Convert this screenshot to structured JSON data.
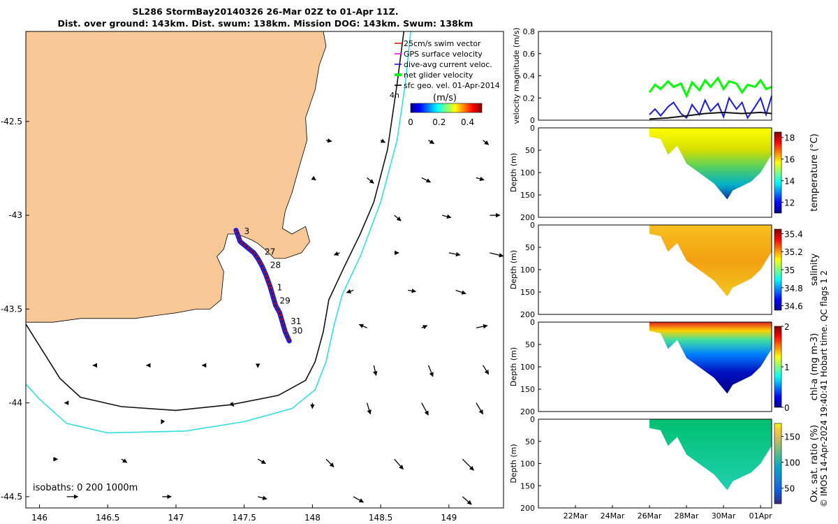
{
  "figure": {
    "title_line1": "SL286 StormBay20140326 26-Mar 02Z to 01-Apr 11Z.",
    "title_line2": "Dist. over ground: 143km. Dist. swum: 138km. Mission DOG: 143km. Swum: 138km",
    "credit": "© IMOS 14-Apr-2024 19:40:41 Hobart time. QC flags 1  2"
  },
  "colors": {
    "land": "#f9c897",
    "track": "#ee1111",
    "dive_avg": "#1a1ae6",
    "net_glider": "#00ff00",
    "isobath_200": "#111111",
    "isobath_1000": "#30e0e0"
  },
  "chart_data": [
    {
      "type": "map",
      "id": "map",
      "x_ticks": [
        "146",
        "146.5",
        "147",
        "147.5",
        "148",
        "148.5",
        "149"
      ],
      "x_tick_values": [
        146,
        146.5,
        147,
        147.5,
        148,
        148.5,
        149
      ],
      "y_ticks": [
        "-42.5",
        "-43",
        "-43.5",
        "-44",
        "-44.5"
      ],
      "y_tick_values": [
        -42.5,
        -43,
        -43.5,
        -44,
        -44.5
      ],
      "xlim": [
        145.9,
        149.4
      ],
      "ylim": [
        -44.56,
        -42.02
      ],
      "legend": {
        "position": "top-right",
        "items": [
          {
            "label": "25cm/s swim vector",
            "color": "#ee1111"
          },
          {
            "label": "GPS surface velocity",
            "color": "#ff00ff"
          },
          {
            "label": "dive-avg current veloc.",
            "color": "#1a1ae6"
          },
          {
            "label": "net glider velocity",
            "color": "#00ff00"
          },
          {
            "label": "sfc geo. vel. 01-Apr-2014",
            "color": "#000000"
          }
        ],
        "time_label": "4h",
        "colorbar_unit": "(m/s)",
        "colorbar_ticks": [
          "0",
          "0.2",
          "0.4"
        ],
        "colorbar_tick_values": [
          0,
          0.2,
          0.4
        ],
        "colorbar_range": [
          0,
          0.5
        ]
      },
      "isobaths_label": "isobaths: 0   200  1000m",
      "track": [
        [
          147.44,
          -43.08
        ],
        [
          147.47,
          -43.14
        ],
        [
          147.52,
          -43.17
        ],
        [
          147.57,
          -43.2
        ],
        [
          147.6,
          -43.23
        ],
        [
          147.63,
          -43.27
        ],
        [
          147.66,
          -43.32
        ],
        [
          147.69,
          -43.38
        ],
        [
          147.71,
          -43.43
        ],
        [
          147.73,
          -43.48
        ],
        [
          147.76,
          -43.52
        ],
        [
          147.78,
          -43.57
        ],
        [
          147.8,
          -43.62
        ],
        [
          147.83,
          -43.67
        ]
      ],
      "day_labels": [
        {
          "text": "3",
          "lon": 147.5,
          "lat": -43.1
        },
        {
          "text": "27",
          "lon": 147.65,
          "lat": -43.21
        },
        {
          "text": "28",
          "lon": 147.69,
          "lat": -43.28
        },
        {
          "text": "1",
          "lon": 147.74,
          "lat": -43.4
        },
        {
          "text": "29",
          "lon": 147.76,
          "lat": -43.47
        },
        {
          "text": "31",
          "lon": 147.84,
          "lat": -43.58
        },
        {
          "text": "30",
          "lon": 147.85,
          "lat": -43.63
        }
      ],
      "isobath_200": [
        [
          148.67,
          -42.02
        ],
        [
          148.62,
          -42.3
        ],
        [
          148.55,
          -42.65
        ],
        [
          148.45,
          -42.93
        ],
        [
          148.35,
          -43.1
        ],
        [
          148.23,
          -43.28
        ],
        [
          148.12,
          -43.45
        ],
        [
          148.08,
          -43.62
        ],
        [
          148.02,
          -43.78
        ],
        [
          147.95,
          -43.88
        ],
        [
          147.75,
          -43.96
        ],
        [
          147.4,
          -44.01
        ],
        [
          147.0,
          -44.04
        ],
        [
          146.6,
          -44.02
        ],
        [
          146.3,
          -43.97
        ],
        [
          146.15,
          -43.87
        ],
        [
          145.9,
          -43.58
        ]
      ],
      "isobath_1000": [
        [
          148.72,
          -42.02
        ],
        [
          148.68,
          -42.3
        ],
        [
          148.62,
          -42.6
        ],
        [
          148.5,
          -42.93
        ],
        [
          148.35,
          -43.22
        ],
        [
          148.22,
          -43.42
        ],
        [
          148.16,
          -43.58
        ],
        [
          148.1,
          -43.78
        ],
        [
          148.02,
          -43.93
        ],
        [
          147.85,
          -44.03
        ],
        [
          147.5,
          -44.1
        ],
        [
          147.07,
          -44.15
        ],
        [
          146.5,
          -44.16
        ],
        [
          146.2,
          -44.11
        ],
        [
          146.0,
          -43.98
        ],
        [
          145.9,
          -43.9
        ]
      ],
      "land": [
        [
          145.9,
          -42.02
        ],
        [
          148.08,
          -42.02
        ],
        [
          148.1,
          -42.1
        ],
        [
          148.05,
          -42.2
        ],
        [
          148.02,
          -42.33
        ],
        [
          147.95,
          -42.48
        ],
        [
          147.96,
          -42.6
        ],
        [
          147.9,
          -42.75
        ],
        [
          147.85,
          -42.88
        ],
        [
          147.8,
          -42.98
        ],
        [
          147.78,
          -43.07
        ],
        [
          147.85,
          -43.1
        ],
        [
          147.95,
          -43.06
        ],
        [
          147.98,
          -43.14
        ],
        [
          147.92,
          -43.2
        ],
        [
          147.8,
          -43.23
        ],
        [
          147.72,
          -43.23
        ],
        [
          147.65,
          -43.18
        ],
        [
          147.6,
          -43.15
        ],
        [
          147.55,
          -43.13
        ],
        [
          147.45,
          -43.1
        ],
        [
          147.38,
          -43.1
        ],
        [
          147.35,
          -43.18
        ],
        [
          147.3,
          -43.22
        ],
        [
          147.35,
          -43.3
        ],
        [
          147.33,
          -43.45
        ],
        [
          147.25,
          -43.5
        ],
        [
          147.15,
          -43.5
        ],
        [
          147.0,
          -43.52
        ],
        [
          146.9,
          -43.53
        ],
        [
          146.7,
          -43.55
        ],
        [
          146.5,
          -43.55
        ],
        [
          146.3,
          -43.55
        ],
        [
          146.1,
          -43.57
        ],
        [
          145.9,
          -43.57
        ]
      ],
      "vector_scale": 0.25,
      "vectors": [
        [
          148.1,
          -42.6,
          0.05,
          -0.01
        ],
        [
          148.5,
          -42.6,
          0.04,
          -0.02
        ],
        [
          148.85,
          -42.6,
          0.05,
          -0.03
        ],
        [
          149.25,
          -42.6,
          0.05,
          -0.04
        ],
        [
          148.0,
          -42.8,
          0.03,
          -0.02
        ],
        [
          148.4,
          -42.8,
          0.06,
          -0.05
        ],
        [
          148.8,
          -42.8,
          0.08,
          -0.04
        ],
        [
          149.2,
          -42.8,
          0.07,
          -0.02
        ],
        [
          148.6,
          -43.0,
          0.06,
          -0.05
        ],
        [
          148.95,
          -43.0,
          0.08,
          -0.02
        ],
        [
          149.3,
          -43.0,
          0.09,
          0.0
        ],
        [
          148.2,
          -43.2,
          -0.05,
          -0.02
        ],
        [
          148.6,
          -43.2,
          0.04,
          0.0
        ],
        [
          149.0,
          -43.2,
          0.1,
          -0.02
        ],
        [
          149.3,
          -43.2,
          0.12,
          -0.03
        ],
        [
          148.3,
          -43.4,
          -0.06,
          -0.02
        ],
        [
          148.7,
          -43.4,
          0.07,
          -0.01
        ],
        [
          149.05,
          -43.4,
          0.09,
          -0.03
        ],
        [
          148.4,
          -43.6,
          -0.07,
          0.03
        ],
        [
          148.8,
          -43.6,
          0.05,
          0.02
        ],
        [
          149.2,
          -43.6,
          0.1,
          0.02
        ],
        [
          148.45,
          -43.8,
          0.02,
          -0.09
        ],
        [
          148.85,
          -43.8,
          0.04,
          -0.1
        ],
        [
          149.25,
          -43.8,
          0.05,
          -0.08
        ],
        [
          147.2,
          -43.8,
          -0.01,
          0.0
        ],
        [
          147.6,
          -43.8,
          0.0,
          -0.02
        ],
        [
          146.8,
          -43.8,
          -0.02,
          0.0
        ],
        [
          146.4,
          -43.8,
          -0.01,
          0.0
        ],
        [
          148.0,
          -44.0,
          0.0,
          -0.05
        ],
        [
          148.4,
          -44.0,
          0.03,
          -0.1
        ],
        [
          148.8,
          -44.0,
          0.06,
          -0.11
        ],
        [
          149.2,
          -44.0,
          0.06,
          -0.1
        ],
        [
          147.4,
          -44.0,
          0.03,
          -0.03
        ],
        [
          146.9,
          -44.1,
          -0.01,
          -0.02
        ],
        [
          146.2,
          -44.0,
          -0.02,
          0.0
        ],
        [
          147.6,
          -44.3,
          0.07,
          -0.04
        ],
        [
          148.1,
          -44.3,
          0.07,
          -0.07
        ],
        [
          148.6,
          -44.3,
          0.08,
          -0.09
        ],
        [
          149.1,
          -44.3,
          0.1,
          -0.1
        ],
        [
          146.6,
          -44.3,
          0.05,
          -0.03
        ],
        [
          146.1,
          -44.3,
          0.04,
          0.0
        ],
        [
          146.2,
          -44.5,
          0.1,
          0.0
        ],
        [
          146.9,
          -44.5,
          0.08,
          0.0
        ],
        [
          147.6,
          -44.5,
          0.08,
          -0.02
        ],
        [
          148.3,
          -44.5,
          0.09,
          -0.05
        ],
        [
          149.1,
          -44.5,
          0.08,
          -0.07
        ]
      ]
    },
    {
      "type": "line",
      "id": "velocity",
      "ylabel": "velocity magnitude (m/s)",
      "ylim": [
        0,
        0.8
      ],
      "y_ticks": [
        "0",
        "0.2",
        "0.4",
        "0.6",
        "0.8"
      ],
      "y_tick_values": [
        0,
        0.2,
        0.4,
        0.6,
        0.8
      ],
      "xlim": [
        20,
        32.6
      ],
      "series": [
        {
          "color": "#00ff00",
          "x": [
            26.0,
            26.3,
            26.6,
            27.0,
            27.3,
            27.7,
            28.0,
            28.3,
            28.7,
            29.0,
            29.3,
            29.7,
            30.0,
            30.3,
            30.7,
            31.0,
            31.3,
            31.7,
            32.0,
            32.3,
            32.6
          ],
          "values": [
            0.25,
            0.32,
            0.28,
            0.35,
            0.3,
            0.33,
            0.22,
            0.34,
            0.27,
            0.36,
            0.3,
            0.38,
            0.28,
            0.35,
            0.33,
            0.25,
            0.32,
            0.3,
            0.36,
            0.28,
            0.3
          ]
        },
        {
          "color": "#1a1ae6",
          "x": [
            26.0,
            26.3,
            26.6,
            27.0,
            27.3,
            27.7,
            28.0,
            28.3,
            28.7,
            29.0,
            29.3,
            29.7,
            30.0,
            30.3,
            30.7,
            31.0,
            31.3,
            31.7,
            32.0,
            32.3,
            32.6
          ],
          "values": [
            0.05,
            0.1,
            0.04,
            0.12,
            0.16,
            0.06,
            0.02,
            0.14,
            0.05,
            0.18,
            0.08,
            0.15,
            0.03,
            0.2,
            0.1,
            0.16,
            0.02,
            0.12,
            0.2,
            0.05,
            0.22
          ]
        },
        {
          "color": "#111111",
          "x": [
            26.0,
            27.0,
            28.0,
            29.0,
            30.0,
            31.0,
            32.0,
            32.6
          ],
          "values": [
            0.01,
            0.02,
            0.04,
            0.06,
            0.07,
            0.06,
            0.07,
            0.06
          ]
        }
      ]
    },
    {
      "type": "heatmap",
      "id": "temperature",
      "ylabel": "Depth (m)",
      "ylim": [
        200,
        0
      ],
      "y_ticks": [
        "0",
        "50",
        "100",
        "150",
        "200"
      ],
      "y_tick_values": [
        0,
        50,
        100,
        150,
        200
      ],
      "xlim": [
        20,
        32.6
      ],
      "colorbar_label": "temperature (°C)",
      "colorbar_ticks": [
        "12",
        "14",
        "16",
        "18"
      ],
      "colorbar_tick_values": [
        12,
        14,
        16,
        18
      ],
      "colorbar_range": [
        11,
        18.5
      ],
      "profile": {
        "x": [
          26.0,
          26.6,
          27.0,
          27.5,
          28.0,
          28.5,
          29.0,
          29.5,
          30.0,
          30.2,
          30.5,
          31.0,
          31.5,
          32.0,
          32.6
        ],
        "bottom_depth": [
          20,
          25,
          60,
          40,
          80,
          95,
          110,
          125,
          150,
          160,
          140,
          130,
          120,
          100,
          60
        ]
      },
      "surface_value": 17.2,
      "bottom_value": 12.5
    },
    {
      "type": "heatmap",
      "id": "salinity",
      "ylabel": "Depth (m)",
      "ylim": [
        200,
        0
      ],
      "y_ticks": [
        "0",
        "50",
        "100",
        "150",
        "200"
      ],
      "y_tick_values": [
        0,
        50,
        100,
        150,
        200
      ],
      "xlim": [
        20,
        32.6
      ],
      "colorbar_label": "salinity",
      "colorbar_ticks": [
        "34.6",
        "34.8",
        "35",
        "35.2",
        "35.4"
      ],
      "colorbar_tick_values": [
        34.6,
        34.8,
        35,
        35.2,
        35.4
      ],
      "colorbar_range": [
        34.55,
        35.45
      ],
      "profile": {
        "x": [
          26.0,
          26.6,
          27.0,
          27.5,
          28.0,
          28.5,
          29.0,
          29.5,
          30.0,
          30.2,
          30.5,
          31.0,
          31.5,
          32.0,
          32.6
        ],
        "bottom_depth": [
          20,
          25,
          60,
          40,
          80,
          95,
          110,
          125,
          150,
          160,
          140,
          130,
          120,
          100,
          60
        ]
      },
      "surface_value": 35.15,
      "bottom_value": 35.1
    },
    {
      "type": "heatmap",
      "id": "chla",
      "ylabel": "Depth (m)",
      "ylim": [
        200,
        0
      ],
      "y_ticks": [
        "0",
        "50",
        "100",
        "150",
        "200"
      ],
      "y_tick_values": [
        0,
        50,
        100,
        150,
        200
      ],
      "xlim": [
        20,
        32.6
      ],
      "colorbar_label": "chl-a (mg m-3)",
      "colorbar_ticks": [
        "0",
        "1",
        "2"
      ],
      "colorbar_tick_values": [
        0,
        1,
        2
      ],
      "colorbar_range": [
        0,
        2
      ],
      "profile": {
        "x": [
          26.0,
          26.6,
          27.0,
          27.5,
          28.0,
          28.5,
          29.0,
          29.5,
          30.0,
          30.2,
          30.5,
          31.0,
          31.5,
          32.0,
          32.6
        ],
        "bottom_depth": [
          20,
          25,
          60,
          40,
          80,
          95,
          110,
          125,
          150,
          160,
          140,
          130,
          120,
          100,
          60
        ]
      },
      "surface_value": 1.8,
      "bottom_value": 0.1
    },
    {
      "type": "heatmap",
      "id": "oxygen",
      "ylabel": "Depth (m)",
      "ylim": [
        200,
        0
      ],
      "y_ticks": [
        "0",
        "50",
        "100",
        "150",
        "200"
      ],
      "y_tick_values": [
        0,
        50,
        100,
        150,
        200
      ],
      "xlim": [
        20,
        32.6
      ],
      "x_ticks": [
        "22Mar",
        "24Mar",
        "26Mar",
        "28Mar",
        "30Mar",
        "01Apr"
      ],
      "x_tick_values": [
        22,
        24,
        26,
        28,
        30,
        32
      ],
      "colorbar_label": "Ox. sat. ratio (%)",
      "colorbar_ticks": [
        "50",
        "100",
        "150"
      ],
      "colorbar_tick_values": [
        50,
        100,
        150
      ],
      "colorbar_range": [
        20,
        175
      ],
      "profile": {
        "x": [
          26.0,
          26.6,
          27.0,
          27.5,
          28.0,
          28.5,
          29.0,
          29.5,
          30.0,
          30.2,
          30.5,
          31.0,
          31.5,
          32.0,
          32.6
        ],
        "bottom_depth": [
          20,
          25,
          60,
          40,
          80,
          95,
          110,
          125,
          150,
          160,
          140,
          130,
          120,
          100,
          60
        ]
      },
      "surface_value": 97,
      "bottom_value": 88
    }
  ]
}
